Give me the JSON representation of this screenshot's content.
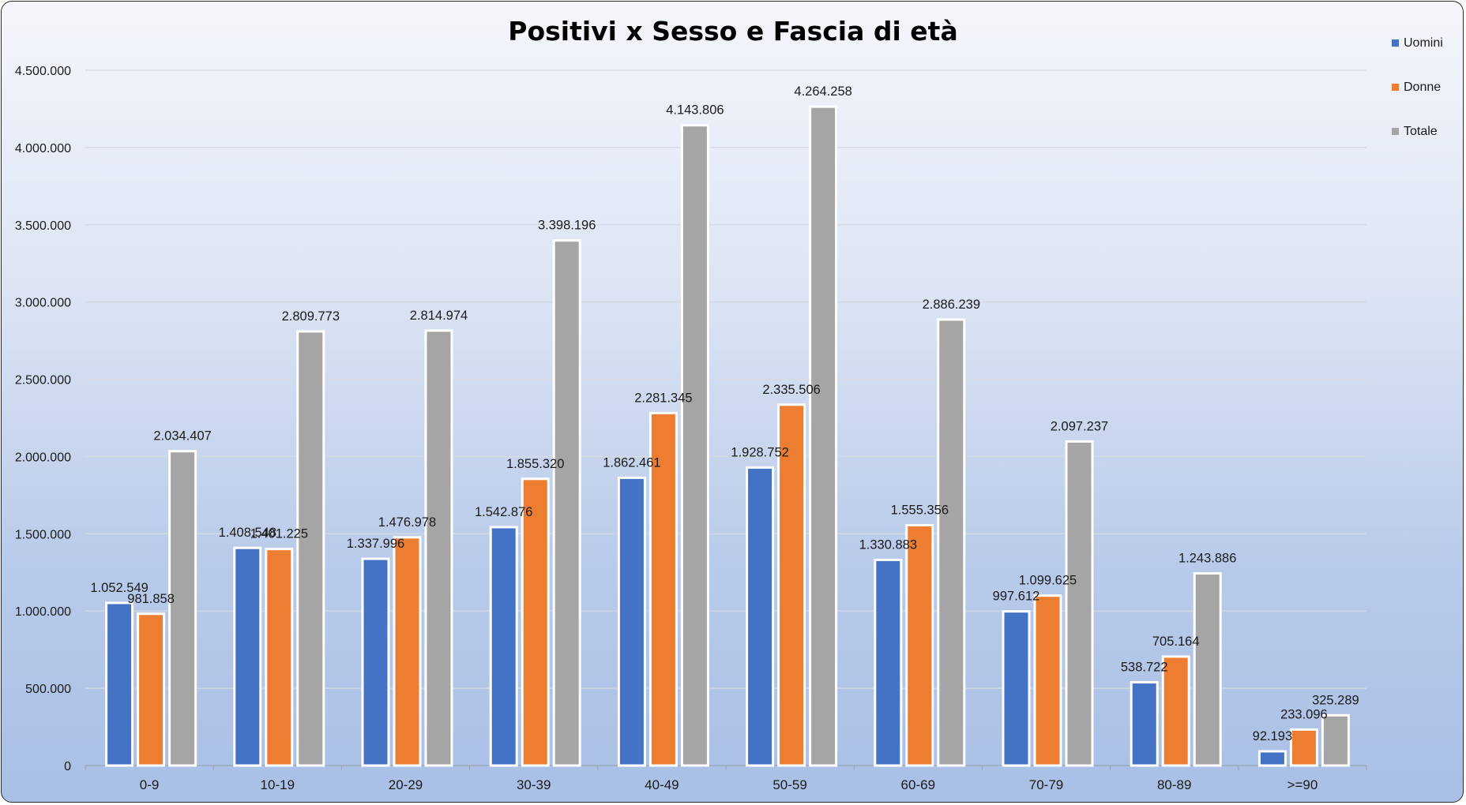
{
  "chart_data": {
    "type": "bar",
    "title": "Positivi x Sesso e Fascia di età",
    "xlabel": "",
    "ylabel": "",
    "categories": [
      "0-9",
      "10-19",
      "20-29",
      "30-39",
      "40-49",
      "50-59",
      "60-69",
      "70-79",
      "80-89",
      ">=90"
    ],
    "series": [
      {
        "name": "Uomini",
        "color": "#4472c4",
        "values": [
          1052549,
          1408548,
          1337996,
          1542876,
          1862461,
          1928752,
          1330883,
          997612,
          538722,
          92193
        ],
        "labels": [
          "1.052.549",
          "1.408.548",
          "1.337.996",
          "1.542.876",
          "1.862.461",
          "1.928.752",
          "1.330.883",
          "997.612",
          "538.722",
          "92.193"
        ]
      },
      {
        "name": "Donne",
        "color": "#ed7d31",
        "values": [
          981858,
          1401225,
          1476978,
          1855320,
          2281345,
          2335506,
          1555356,
          1099625,
          705164,
          233096
        ],
        "labels": [
          "981.858",
          "1.401.225",
          "1.476.978",
          "1.855.320",
          "2.281.345",
          "2.335.506",
          "1.555.356",
          "1.099.625",
          "705.164",
          "233.096"
        ]
      },
      {
        "name": "Totale",
        "color": "#a5a5a5",
        "values": [
          2034407,
          2809773,
          2814974,
          3398196,
          4143806,
          4264258,
          2886239,
          2097237,
          1243886,
          325289
        ],
        "labels": [
          "2.034.407",
          "2.809.773",
          "2.814.974",
          "3.398.196",
          "4.143.806",
          "4.264.258",
          "2.886.239",
          "2.097.237",
          "1.243.886",
          "325.289"
        ]
      }
    ],
    "ylim": [
      0,
      4500000
    ],
    "yticks": [
      0,
      500000,
      1000000,
      1500000,
      2000000,
      2500000,
      3000000,
      3500000,
      4000000,
      4500000
    ],
    "ytick_labels": [
      "0",
      "500.000",
      "1.000.000",
      "1.500.000",
      "2.000.000",
      "2.500.000",
      "3.000.000",
      "3.500.000",
      "4.000.000",
      "4.500.000"
    ],
    "grid": true,
    "legend_position": "right"
  }
}
